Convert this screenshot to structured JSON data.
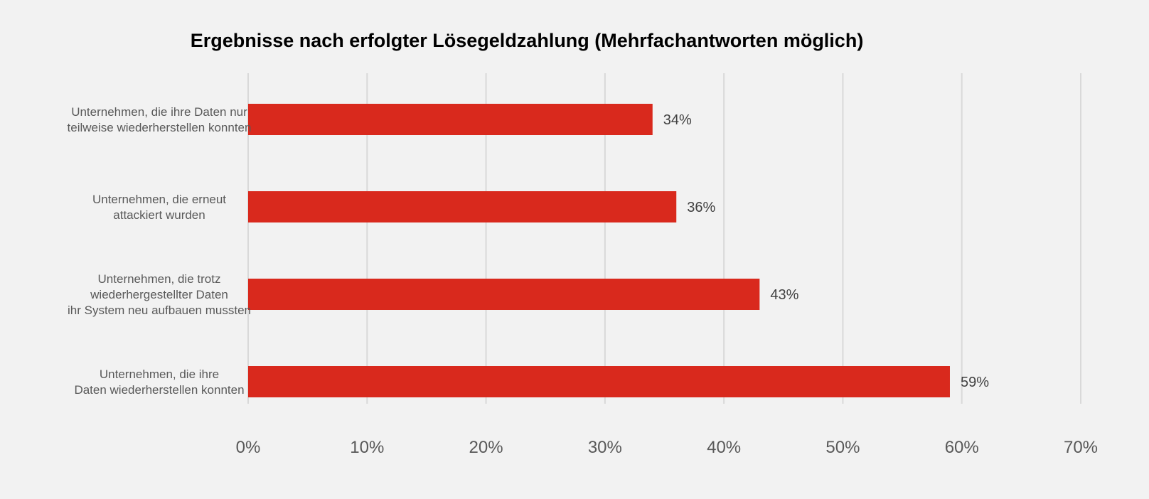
{
  "chart_data": {
    "type": "bar",
    "orientation": "horizontal",
    "title": "Ergebnisse nach erfolgter Lösegeldzahlung (Mehrfachantworten möglich)",
    "categories": [
      [
        "Unternehmen, die ihre Daten nur",
        "teilweise wiederherstellen konnten"
      ],
      [
        "Unternehmen, die erneut",
        "attackiert wurden"
      ],
      [
        "Unternehmen, die trotz",
        "wiederhergestellter Daten",
        "ihr System neu aufbauen mussten"
      ],
      [
        "Unternehmen, die ihre",
        "Daten wiederherstellen konnten"
      ]
    ],
    "values": [
      34,
      36,
      43,
      59
    ],
    "data_labels": [
      "34%",
      "36%",
      "43%",
      "59%"
    ],
    "xlim": [
      0,
      70
    ],
    "xticks": [
      0,
      10,
      20,
      30,
      40,
      50,
      60,
      70
    ],
    "xtick_labels": [
      "0%",
      "10%",
      "20%",
      "30%",
      "40%",
      "50%",
      "60%",
      "70%"
    ],
    "grid": "vertical",
    "bar_color": "#d9291d",
    "grid_color": "#d9d9d9",
    "background": "#f2f2f2"
  }
}
